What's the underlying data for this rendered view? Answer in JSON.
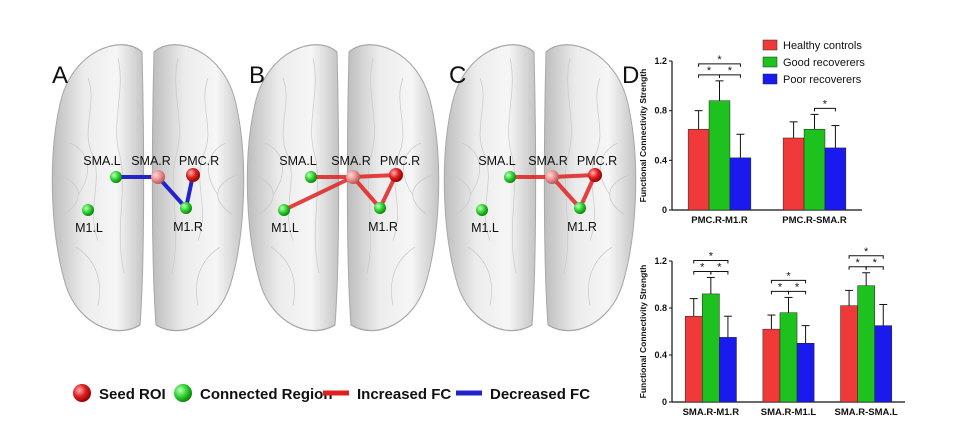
{
  "panels": [
    {
      "letter": "A",
      "labels": {
        "sma_l": "SMA.L",
        "sma_r": "SMA.R",
        "pmc_r": "PMC.R",
        "m1_l": "M1.L",
        "m1_r": "M1.R"
      }
    },
    {
      "letter": "B",
      "labels": {
        "sma_l": "SMA.L",
        "sma_r": "SMA.R",
        "pmc_r": "PMC.R",
        "m1_l": "M1.L",
        "m1_r": "M1.R"
      }
    },
    {
      "letter": "C",
      "labels": {
        "sma_l": "SMA.L",
        "sma_r": "SMA.R",
        "pmc_r": "PMC.R",
        "m1_l": "M1.L",
        "m1_r": "M1.R"
      }
    }
  ],
  "panel_d_letter": "D",
  "bottom_legend": {
    "seed_roi": "Seed ROI",
    "connected_region": "Connected Region",
    "increased_fc": "Increased FC",
    "decreased_fc": "Decreased FC"
  },
  "colors": {
    "healthy": "#f03a3a",
    "good": "#1ec21e",
    "poor": "#1a1aee",
    "increased_fc": "#e02020",
    "decreased_fc": "#2323cc",
    "seed_roi": "#e02020",
    "connected_region": "#2fd62f"
  },
  "chart_data": [
    {
      "type": "bar",
      "categories": [
        "PMC.R-M1.R",
        "PMC.R-SMA.R"
      ],
      "series": [
        {
          "name": "Healthy controls",
          "values": [
            0.65,
            0.58
          ],
          "errors": [
            0.15,
            0.13
          ]
        },
        {
          "name": "Good recoverers",
          "values": [
            0.88,
            0.65
          ],
          "errors": [
            0.16,
            0.12
          ]
        },
        {
          "name": "Poor recoverers",
          "values": [
            0.42,
            0.5
          ],
          "errors": [
            0.19,
            0.18
          ]
        }
      ],
      "ylabel": "Functional Connectivity Strength",
      "ylim": [
        0,
        1.2
      ],
      "yticks": [
        "0",
        "0.4",
        "0.8",
        "1.2"
      ],
      "legend": "top-right",
      "significance": [
        {
          "category": 0,
          "from": 0,
          "to": 2,
          "label": "*"
        },
        {
          "category": 0,
          "from": 0,
          "to": 1,
          "label": "*"
        },
        {
          "category": 0,
          "from": 1,
          "to": 2,
          "label": "*"
        },
        {
          "category": 1,
          "from": 1,
          "to": 2,
          "label": "*"
        }
      ]
    },
    {
      "type": "bar",
      "categories": [
        "SMA.R-M1.R",
        "SMA.R-M1.L",
        "SMA.R-SMA.L"
      ],
      "series": [
        {
          "name": "Healthy controls",
          "values": [
            0.73,
            0.62,
            0.82
          ],
          "errors": [
            0.15,
            0.12,
            0.13
          ]
        },
        {
          "name": "Good recoverers",
          "values": [
            0.92,
            0.76,
            0.99
          ],
          "errors": [
            0.14,
            0.13,
            0.11
          ]
        },
        {
          "name": "Poor recoverers",
          "values": [
            0.55,
            0.5,
            0.65
          ],
          "errors": [
            0.18,
            0.15,
            0.18
          ]
        }
      ],
      "ylabel": "Functional Connectivity Strength",
      "ylim": [
        0,
        1.2
      ],
      "yticks": [
        "0",
        "0.4",
        "0.8",
        "1.2"
      ],
      "significance": [
        {
          "category": 0,
          "from": 0,
          "to": 2,
          "label": "*"
        },
        {
          "category": 0,
          "from": 0,
          "to": 1,
          "label": "*"
        },
        {
          "category": 0,
          "from": 1,
          "to": 2,
          "label": "*"
        },
        {
          "category": 1,
          "from": 0,
          "to": 2,
          "label": "*"
        },
        {
          "category": 1,
          "from": 0,
          "to": 1,
          "label": "*"
        },
        {
          "category": 1,
          "from": 1,
          "to": 2,
          "label": "*"
        },
        {
          "category": 2,
          "from": 0,
          "to": 2,
          "label": "*"
        },
        {
          "category": 2,
          "from": 0,
          "to": 1,
          "label": "*"
        },
        {
          "category": 2,
          "from": 1,
          "to": 2,
          "label": "*"
        }
      ]
    }
  ]
}
